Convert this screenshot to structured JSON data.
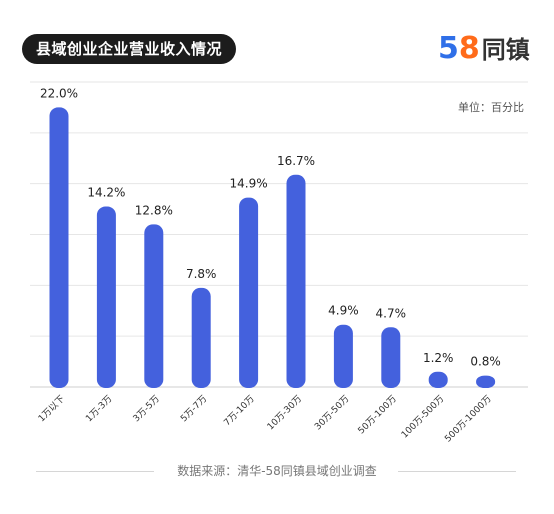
{
  "header": {
    "title": "县域创业企业营业收入情况",
    "brand_prefix_5": "5",
    "brand_prefix_8": "8",
    "brand_name": "同镇"
  },
  "footer": {
    "source": "数据来源：清华-58同镇县域创业调查"
  },
  "chart_data": {
    "type": "bar",
    "unit_label": "单位：百分比",
    "categories": [
      "1万以下",
      "1万-3万",
      "3万-5万",
      "5万-7万",
      "7万-10万",
      "10万-30万",
      "30万-50万",
      "50万-100万",
      "100万-500万",
      "500万-1000万"
    ],
    "values": [
      22.0,
      14.2,
      12.8,
      7.8,
      14.9,
      16.7,
      4.9,
      4.7,
      1.2,
      0.8
    ],
    "data_labels": [
      "22.0%",
      "14.2%",
      "12.8%",
      "7.8%",
      "14.9%",
      "16.7%",
      "4.9%",
      "4.7%",
      "1.2%",
      "0.8%"
    ],
    "ylim": [
      0,
      24
    ],
    "grid": true,
    "bar_color": "#4461dd",
    "grid_color": "#e6e6e6"
  }
}
